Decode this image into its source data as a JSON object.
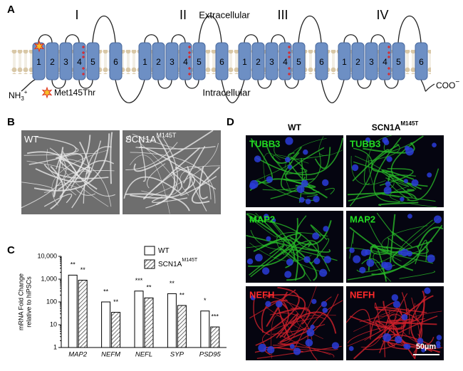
{
  "panel_a": {
    "label": "A",
    "domains": [
      "I",
      "II",
      "III",
      "IV"
    ],
    "segments": [
      "1",
      "2",
      "3",
      "4",
      "5",
      "6"
    ],
    "extracellular": "Extracellular",
    "intracellular": "Intracellular",
    "n_terminus": {
      "text": "NH",
      "sub": "3",
      "sup": "+"
    },
    "mutation": "Met145Thr",
    "c_terminus": {
      "text": "COO",
      "sup": "−"
    }
  },
  "panel_b": {
    "label": "B",
    "images": [
      {
        "title": "WT"
      },
      {
        "title": "SCN1A",
        "sup": "M145T"
      }
    ]
  },
  "chart_data": {
    "type": "bar",
    "panel_label": "C",
    "ylabel": [
      "mRNA Fold Change",
      "relative to hiPSCs"
    ],
    "log_scale": true,
    "categories": [
      "MAP2",
      "NEFM",
      "NEFL",
      "SYP",
      "PSD95"
    ],
    "series": [
      {
        "name": "WT",
        "fill": "white",
        "values": [
          1500,
          100,
          300,
          230,
          40
        ],
        "significance": [
          "**",
          "**",
          "***",
          "**",
          "*"
        ]
      },
      {
        "name": "SCN1A",
        "name_sup": "M145T",
        "fill": "hatched",
        "values": [
          900,
          35,
          150,
          70,
          8
        ],
        "significance": [
          "**",
          "**",
          "**",
          "**",
          "***"
        ]
      }
    ],
    "ylim": [
      1,
      10000
    ],
    "yticks": [
      1,
      10,
      100,
      {
        "value": 1000,
        "label": "1,000"
      },
      {
        "value": 10000,
        "label": "10,000"
      }
    ]
  },
  "panel_d": {
    "label": "D",
    "columns": [
      {
        "title": "WT"
      },
      {
        "title": "SCN1A",
        "sup": "M145T"
      }
    ],
    "rows": [
      {
        "marker": "TUBB3",
        "color": "#22dd22"
      },
      {
        "marker": "MAP2",
        "color": "#22dd22"
      },
      {
        "marker": "NEFH",
        "color": "#ff2a2a"
      }
    ],
    "scale_bar": "50µm"
  }
}
